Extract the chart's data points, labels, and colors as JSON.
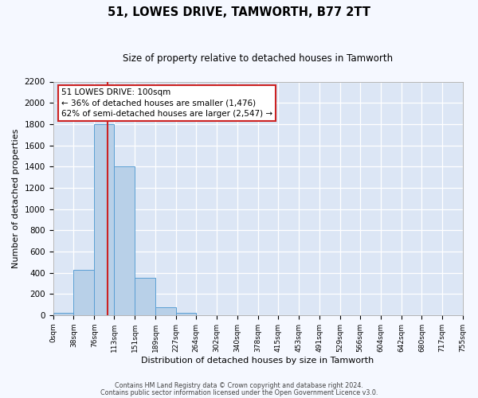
{
  "title": "51, LOWES DRIVE, TAMWORTH, B77 2TT",
  "subtitle": "Size of property relative to detached houses in Tamworth",
  "xlabel": "Distribution of detached houses by size in Tamworth",
  "ylabel": "Number of detached properties",
  "bar_color": "#b8d0e8",
  "bar_edge_color": "#5a9fd4",
  "background_color": "#dce6f5",
  "grid_color": "#ffffff",
  "fig_background_color": "#f5f8ff",
  "red_line_x": 100,
  "bin_edges": [
    0,
    38,
    76,
    113,
    151,
    189,
    227,
    264,
    302,
    340,
    378,
    415,
    453,
    491,
    529,
    566,
    604,
    642,
    680,
    717,
    755
  ],
  "bar_heights": [
    20,
    430,
    1800,
    1400,
    350,
    75,
    25,
    0,
    0,
    0,
    0,
    0,
    0,
    0,
    0,
    0,
    0,
    0,
    0,
    0
  ],
  "xtick_labels": [
    "0sqm",
    "38sqm",
    "76sqm",
    "113sqm",
    "151sqm",
    "189sqm",
    "227sqm",
    "264sqm",
    "302sqm",
    "340sqm",
    "378sqm",
    "415sqm",
    "453sqm",
    "491sqm",
    "529sqm",
    "566sqm",
    "604sqm",
    "642sqm",
    "680sqm",
    "717sqm",
    "755sqm"
  ],
  "ylim": [
    0,
    2200
  ],
  "yticks": [
    0,
    200,
    400,
    600,
    800,
    1000,
    1200,
    1400,
    1600,
    1800,
    2000,
    2200
  ],
  "annotation_line1": "51 LOWES DRIVE: 100sqm",
  "annotation_line2": "← 36% of detached houses are smaller (1,476)",
  "annotation_line3": "62% of semi-detached houses are larger (2,547) →",
  "annotation_box_color": "#ffffff",
  "annotation_box_edge_color": "#cc2222",
  "footer_line1": "Contains HM Land Registry data © Crown copyright and database right 2024.",
  "footer_line2": "Contains public sector information licensed under the Open Government Licence v3.0."
}
